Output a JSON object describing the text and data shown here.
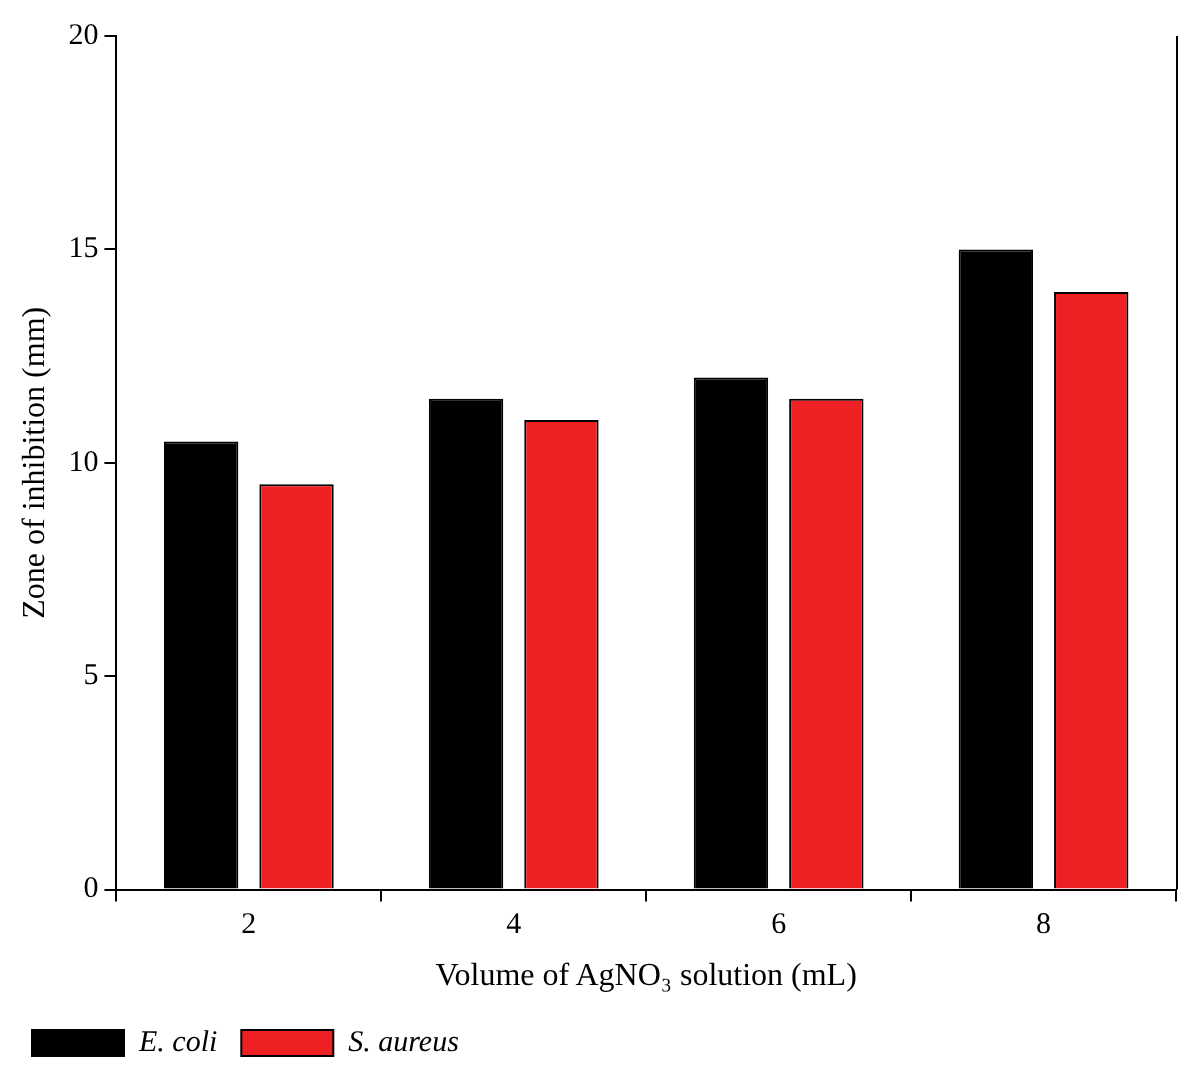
{
  "chart_data": {
    "type": "bar",
    "xlabel": "Volume of AgNO₃ solution (mL)",
    "ylabel": "Zone of inhibition (mm)",
    "categories": [
      "2",
      "4",
      "6",
      "8"
    ],
    "series": [
      {
        "name": "E. coli",
        "color": "#000000",
        "values": [
          10.5,
          11.5,
          12,
          15
        ]
      },
      {
        "name": "S. aureus",
        "color": "#ee2024",
        "values": [
          9.5,
          11,
          11.5,
          14
        ]
      }
    ],
    "ylim": [
      0,
      20
    ],
    "yticks": [
      0,
      5,
      10,
      15,
      20
    ],
    "legend": "bottom left"
  }
}
